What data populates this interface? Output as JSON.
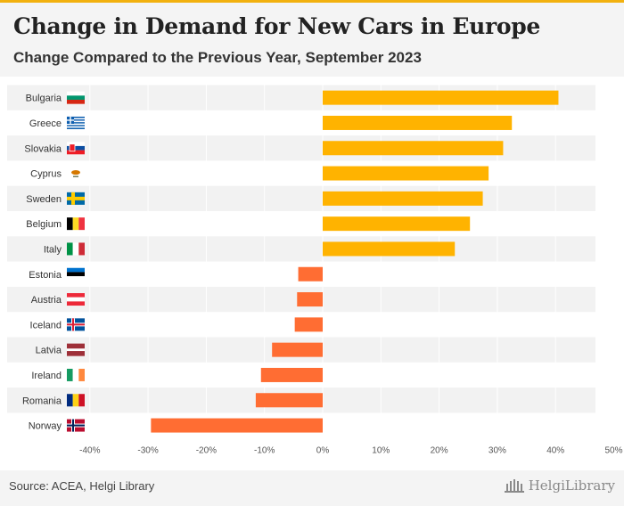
{
  "header": {
    "title": "Change in Demand for New Cars in Europe",
    "subtitle": "Change Compared to the Previous Year, September 2023"
  },
  "footer": {
    "source": "Source: ACEA, Helgi Library",
    "brand": "HelgiLibrary",
    "logo_icon": "library-building-icon"
  },
  "colors": {
    "positive": "#ffb300",
    "negative": "#ff6d33",
    "stripe": "#f2f2f2",
    "text": "#333333",
    "tick": "#555555"
  },
  "chart_data": {
    "type": "bar",
    "orientation": "horizontal",
    "categories": [
      "Bulgaria",
      "Greece",
      "Slovakia",
      "Cyprus",
      "Sweden",
      "Belgium",
      "Italy",
      "Estonia",
      "Austria",
      "Iceland",
      "Latvia",
      "Ireland",
      "Romania",
      "Norway"
    ],
    "values": [
      40.5,
      32.5,
      31.0,
      28.5,
      27.5,
      25.3,
      22.7,
      -4.2,
      -4.4,
      -4.8,
      -8.7,
      -10.6,
      -11.5,
      -29.5
    ],
    "flags": [
      "bulgaria-flag-icon",
      "greece-flag-icon",
      "slovakia-flag-icon",
      "cyprus-flag-icon",
      "sweden-flag-icon",
      "belgium-flag-icon",
      "italy-flag-icon",
      "estonia-flag-icon",
      "austria-flag-icon",
      "iceland-flag-icon",
      "latvia-flag-icon",
      "ireland-flag-icon",
      "romania-flag-icon",
      "norway-flag-icon"
    ],
    "xlim": [
      -40,
      50
    ],
    "xticks": [
      "-40%",
      "-30%",
      "-20%",
      "-10%",
      "0%",
      "10%",
      "20%",
      "30%",
      "40%",
      "50%"
    ],
    "xlabel": "",
    "ylabel": "",
    "grid": true,
    "legend": "none"
  }
}
